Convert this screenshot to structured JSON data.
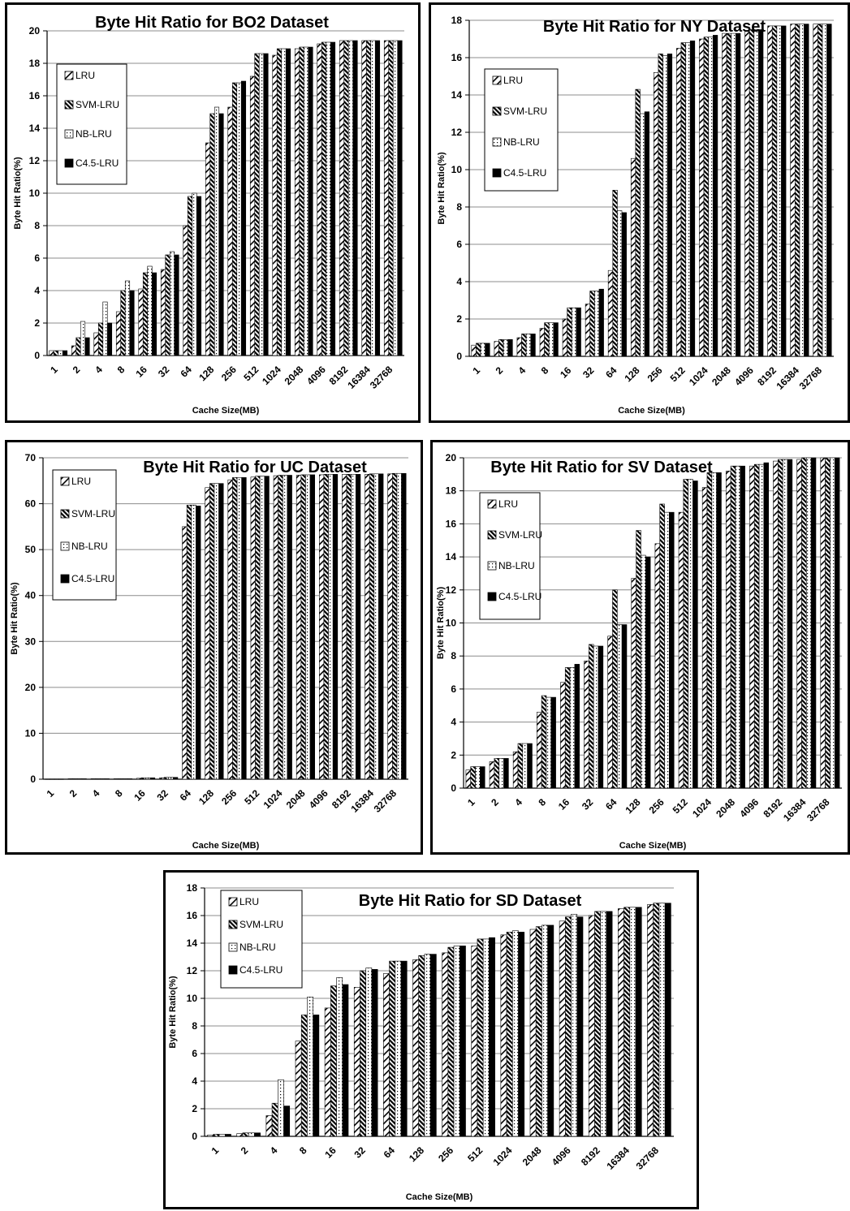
{
  "chart_data": [
    {
      "type": "bar",
      "title": "Byte Hit Ratio for BO2 Dataset",
      "xlabel": "Cache Size(MB)",
      "ylabel": "Byte Hit Ratio(%)",
      "ylim": [
        0,
        20
      ],
      "yticks": [
        "0",
        "2",
        "4",
        "6",
        "8",
        "10",
        "12",
        "14",
        "16",
        "18",
        "20"
      ],
      "grid": true,
      "legend": "top-left",
      "categories": [
        "1",
        "2",
        "4",
        "8",
        "16",
        "32",
        "64",
        "128",
        "256",
        "512",
        "1024",
        "2048",
        "4096",
        "8192",
        "16384",
        "32768"
      ],
      "series": [
        {
          "name": "LRU",
          "values": [
            0.3,
            0.6,
            1.4,
            2.7,
            4.1,
            5.3,
            8.0,
            13.1,
            15.3,
            17.2,
            18.5,
            18.9,
            19.2,
            19.4,
            19.4,
            19.4
          ]
        },
        {
          "name": "SVM-LRU",
          "values": [
            0.3,
            1.1,
            2.0,
            4.0,
            5.1,
            6.2,
            9.8,
            14.9,
            16.8,
            18.6,
            18.9,
            19.0,
            19.3,
            19.4,
            19.4,
            19.4
          ]
        },
        {
          "name": "NB-LRU",
          "values": [
            0.3,
            2.1,
            3.3,
            4.6,
            5.5,
            6.4,
            10.0,
            15.3,
            16.8,
            18.6,
            18.9,
            19.0,
            19.3,
            19.4,
            19.4,
            19.4
          ]
        },
        {
          "name": "C4.5-LRU",
          "values": [
            0.3,
            1.1,
            2.0,
            4.0,
            5.1,
            6.2,
            9.8,
            14.9,
            16.9,
            18.6,
            18.9,
            19.0,
            19.3,
            19.4,
            19.4,
            19.4
          ]
        }
      ]
    },
    {
      "type": "bar",
      "title": "Byte Hit Ratio for NY Dataset",
      "xlabel": "Cache Size(MB)",
      "ylabel": "Byte Hit Ratio(%)",
      "ylim": [
        0,
        18
      ],
      "yticks": [
        "0",
        "2",
        "4",
        "6",
        "8",
        "10",
        "12",
        "14",
        "16",
        "18"
      ],
      "grid": true,
      "legend": "top-left",
      "categories": [
        "1",
        "2",
        "4",
        "8",
        "16",
        "32",
        "64",
        "128",
        "256",
        "512",
        "1024",
        "2048",
        "4096",
        "8192",
        "16384",
        "32768"
      ],
      "series": [
        {
          "name": "LRU",
          "values": [
            0.6,
            0.8,
            1.0,
            1.5,
            2.0,
            2.8,
            4.6,
            10.6,
            15.2,
            16.5,
            17.0,
            17.3,
            17.4,
            17.7,
            17.8,
            17.8
          ]
        },
        {
          "name": "SVM-LRU",
          "values": [
            0.7,
            0.9,
            1.2,
            1.8,
            2.6,
            3.5,
            8.9,
            14.3,
            16.2,
            16.8,
            17.1,
            17.3,
            17.5,
            17.7,
            17.8,
            17.8
          ]
        },
        {
          "name": "NB-LRU",
          "values": [
            0.7,
            0.9,
            1.2,
            1.8,
            2.6,
            3.5,
            7.8,
            13.0,
            16.1,
            16.8,
            17.1,
            17.3,
            17.5,
            17.7,
            17.8,
            17.8
          ]
        },
        {
          "name": "C4.5-LRU",
          "values": [
            0.7,
            0.9,
            1.2,
            1.8,
            2.6,
            3.6,
            7.7,
            13.1,
            16.2,
            16.9,
            17.2,
            17.3,
            17.5,
            17.7,
            17.8,
            17.8
          ]
        }
      ]
    },
    {
      "type": "bar",
      "title": "Byte Hit Ratio for UC Dataset",
      "xlabel": "Cache Size(MB)",
      "ylabel": "Byte Hit Ratio(%)",
      "ylim": [
        0,
        70
      ],
      "yticks": [
        "0",
        "10",
        "20",
        "30",
        "40",
        "50",
        "60",
        "70"
      ],
      "grid": true,
      "legend": "top-left",
      "categories": [
        "1",
        "2",
        "4",
        "8",
        "16",
        "32",
        "64",
        "128",
        "256",
        "512",
        "1024",
        "2048",
        "4096",
        "8192",
        "16384",
        "32768"
      ],
      "series": [
        {
          "name": "LRU",
          "values": [
            0.05,
            0.1,
            0.1,
            0.1,
            0.2,
            0.3,
            55.0,
            63.5,
            65.2,
            65.8,
            66.1,
            66.2,
            66.3,
            66.4,
            66.4,
            66.5
          ]
        },
        {
          "name": "SVM-LRU",
          "values": [
            0.05,
            0.1,
            0.1,
            0.1,
            0.3,
            0.4,
            59.7,
            64.4,
            65.7,
            66.0,
            66.2,
            66.3,
            66.4,
            66.4,
            66.5,
            66.6
          ]
        },
        {
          "name": "NB-LRU",
          "values": [
            0.05,
            0.1,
            0.1,
            0.1,
            0.3,
            0.4,
            59.7,
            64.4,
            65.7,
            66.0,
            66.2,
            66.3,
            66.4,
            66.4,
            66.5,
            66.6
          ]
        },
        {
          "name": "C4.5-LRU",
          "values": [
            0.05,
            0.1,
            0.1,
            0.1,
            0.3,
            0.4,
            59.5,
            64.4,
            65.7,
            66.0,
            66.2,
            66.3,
            66.4,
            66.4,
            66.5,
            66.6
          ]
        }
      ]
    },
    {
      "type": "bar",
      "title": "Byte Hit Ratio for SV Dataset",
      "xlabel": "Cache Size(MB)",
      "ylabel": "Byte Hit Ratio(%)",
      "ylim": [
        0,
        20
      ],
      "yticks": [
        "0",
        "2",
        "4",
        "6",
        "8",
        "10",
        "12",
        "14",
        "16",
        "18",
        "20"
      ],
      "grid": true,
      "legend": "top-left",
      "categories": [
        "1",
        "2",
        "4",
        "8",
        "16",
        "32",
        "64",
        "128",
        "256",
        "512",
        "1024",
        "2048",
        "4096",
        "8192",
        "16384",
        "32768"
      ],
      "series": [
        {
          "name": "LRU",
          "values": [
            1.1,
            1.6,
            2.2,
            4.6,
            6.4,
            7.7,
            9.2,
            12.7,
            14.8,
            16.7,
            18.2,
            19.2,
            19.5,
            19.8,
            19.9,
            20.0
          ]
        },
        {
          "name": "SVM-LRU",
          "values": [
            1.3,
            1.8,
            2.7,
            5.6,
            7.3,
            8.7,
            12.0,
            15.6,
            17.2,
            18.7,
            19.1,
            19.5,
            19.6,
            19.9,
            20.0,
            20.0
          ]
        },
        {
          "name": "NB-LRU",
          "values": [
            1.3,
            1.8,
            2.7,
            5.5,
            7.3,
            8.6,
            9.9,
            14.1,
            16.7,
            18.7,
            19.1,
            19.5,
            19.6,
            19.9,
            20.0,
            20.0
          ]
        },
        {
          "name": "C4.5-LRU",
          "values": [
            1.3,
            1.8,
            2.7,
            5.5,
            7.5,
            8.6,
            9.9,
            14.0,
            16.7,
            18.6,
            19.1,
            19.5,
            19.7,
            19.9,
            20.0,
            20.0
          ]
        }
      ]
    },
    {
      "type": "bar",
      "title": "Byte Hit Ratio for SD Dataset",
      "xlabel": "Cache Size(MB)",
      "ylabel": "Byte Hit Ratio(%)",
      "ylim": [
        0,
        18
      ],
      "yticks": [
        "0",
        "2",
        "4",
        "6",
        "8",
        "10",
        "12",
        "14",
        "16",
        "18"
      ],
      "grid": true,
      "legend": "top-left",
      "categories": [
        "1",
        "2",
        "4",
        "8",
        "16",
        "32",
        "64",
        "128",
        "256",
        "512",
        "1024",
        "2048",
        "4096",
        "8192",
        "16384",
        "32768"
      ],
      "series": [
        {
          "name": "LRU",
          "values": [
            0.1,
            0.2,
            1.5,
            6.9,
            9.3,
            10.8,
            11.8,
            12.8,
            13.3,
            13.8,
            14.6,
            15.0,
            15.6,
            16.0,
            16.5,
            16.8
          ]
        },
        {
          "name": "SVM-LRU",
          "values": [
            0.15,
            0.25,
            2.4,
            8.8,
            10.9,
            12.0,
            12.7,
            13.1,
            13.7,
            14.3,
            14.8,
            15.2,
            15.9,
            16.3,
            16.6,
            16.9
          ]
        },
        {
          "name": "NB-LRU",
          "values": [
            0.15,
            0.25,
            4.1,
            10.1,
            11.5,
            12.2,
            12.7,
            13.2,
            13.8,
            14.3,
            14.9,
            15.3,
            16.1,
            16.3,
            16.6,
            16.9
          ]
        },
        {
          "name": "C4.5-LRU",
          "values": [
            0.15,
            0.25,
            2.2,
            8.8,
            11.0,
            12.1,
            12.7,
            13.2,
            13.8,
            14.4,
            14.8,
            15.3,
            15.9,
            16.3,
            16.6,
            16.9
          ]
        }
      ]
    }
  ],
  "series_patterns": [
    "diag-sparse",
    "diag-dense",
    "dots",
    "solid"
  ],
  "colors": {
    "ink": "#000000",
    "grid": "#8c8c8c",
    "paper": "#ffffff"
  }
}
